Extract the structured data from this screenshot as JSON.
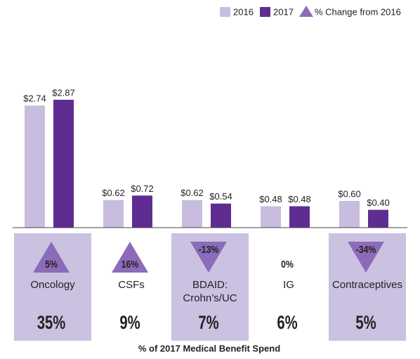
{
  "chart_data": {
    "type": "bar",
    "title": "% of 2017 Medical Benefit Spend",
    "categories": [
      "Oncology",
      "CSFs",
      "BDAID: Crohn’s/UC",
      "IG",
      "Contraceptives"
    ],
    "series": [
      {
        "name": "2016",
        "color": "#c8bddf",
        "values": [
          2.74,
          0.62,
          0.62,
          0.48,
          0.6
        ],
        "value_labels": [
          "$2.74",
          "$0.62",
          "$0.62",
          "$0.48",
          "$0.60"
        ]
      },
      {
        "name": "2017",
        "color": "#5f2d91",
        "values": [
          2.87,
          0.72,
          0.54,
          0.48,
          0.4
        ],
        "value_labels": [
          "$2.87",
          "$0.72",
          "$0.54",
          "$0.48",
          "$0.40"
        ]
      }
    ],
    "change": {
      "name": "% Change from 2016",
      "color": "#8c6bb8",
      "values": [
        5,
        16,
        -13,
        0,
        -34
      ],
      "value_labels": [
        "5%",
        "16%",
        "-13%",
        "0%",
        "-34%"
      ]
    },
    "share": {
      "values": [
        35,
        9,
        7,
        6,
        5
      ],
      "value_labels": [
        "35%",
        "9%",
        "7%",
        "6%",
        "5%"
      ]
    }
  }
}
